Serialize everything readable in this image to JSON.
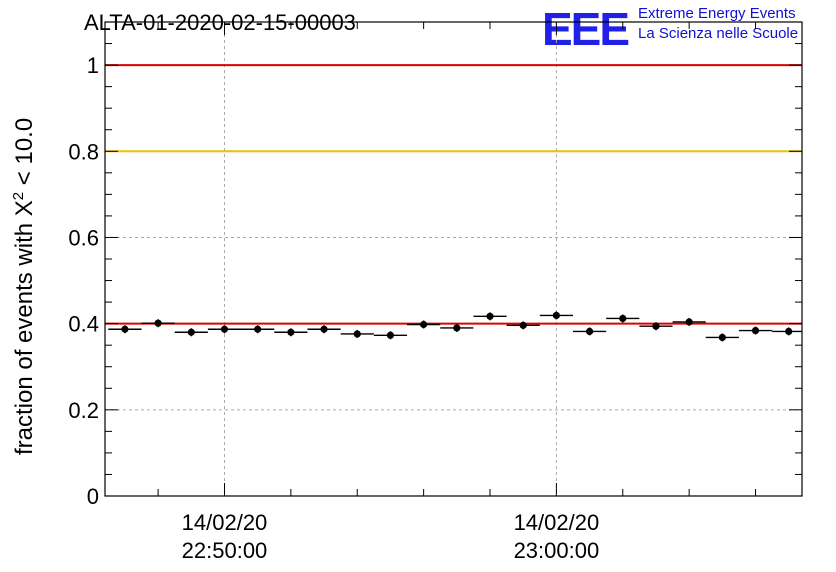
{
  "title": "ALTA-01-2020-02-15-00003",
  "logo": {
    "mark": "EEE",
    "line1": "Extreme Energy Events",
    "line2": "La Scienza nelle Scuole"
  },
  "chart_data": {
    "type": "scatter",
    "ylabel_prefix": "fraction of events with ",
    "ylabel_symbol": "X",
    "ylabel_sup": "2",
    "ylabel_suffix": " < 10.0",
    "ylim": [
      0,
      1.1
    ],
    "yticks": [
      0,
      0.2,
      0.4,
      0.6,
      0.8,
      1
    ],
    "ytick_labels": [
      "0",
      "0.2",
      "0.4",
      "0.6",
      "0.8",
      "1"
    ],
    "x_range_min": [
      -3.6,
      17.4
    ],
    "xticks": [
      {
        "min": 0,
        "date": "14/02/20",
        "time": "22:50:00"
      },
      {
        "min": 10,
        "date": "14/02/20",
        "time": "23:00:00"
      }
    ],
    "grid": true,
    "reference_lines": [
      {
        "y": 1.0,
        "color": "#e00000"
      },
      {
        "y": 0.8,
        "color": "#f0c000"
      },
      {
        "y": 0.4,
        "color": "#e00000"
      }
    ],
    "point_halfwidth_min": 0.5,
    "points": [
      {
        "x": -3.0,
        "y": 0.387
      },
      {
        "x": -2.0,
        "y": 0.401
      },
      {
        "x": -1.0,
        "y": 0.38
      },
      {
        "x": 0.0,
        "y": 0.387
      },
      {
        "x": 1.0,
        "y": 0.387
      },
      {
        "x": 2.0,
        "y": 0.38
      },
      {
        "x": 3.0,
        "y": 0.387
      },
      {
        "x": 4.0,
        "y": 0.376
      },
      {
        "x": 5.0,
        "y": 0.373
      },
      {
        "x": 6.0,
        "y": 0.398
      },
      {
        "x": 7.0,
        "y": 0.39
      },
      {
        "x": 8.0,
        "y": 0.417
      },
      {
        "x": 9.0,
        "y": 0.396
      },
      {
        "x": 10.0,
        "y": 0.419
      },
      {
        "x": 11.0,
        "y": 0.382
      },
      {
        "x": 12.0,
        "y": 0.412
      },
      {
        "x": 13.0,
        "y": 0.394
      },
      {
        "x": 14.0,
        "y": 0.404
      },
      {
        "x": 15.0,
        "y": 0.368
      },
      {
        "x": 16.0,
        "y": 0.384
      },
      {
        "x": 17.0,
        "y": 0.382
      }
    ]
  }
}
